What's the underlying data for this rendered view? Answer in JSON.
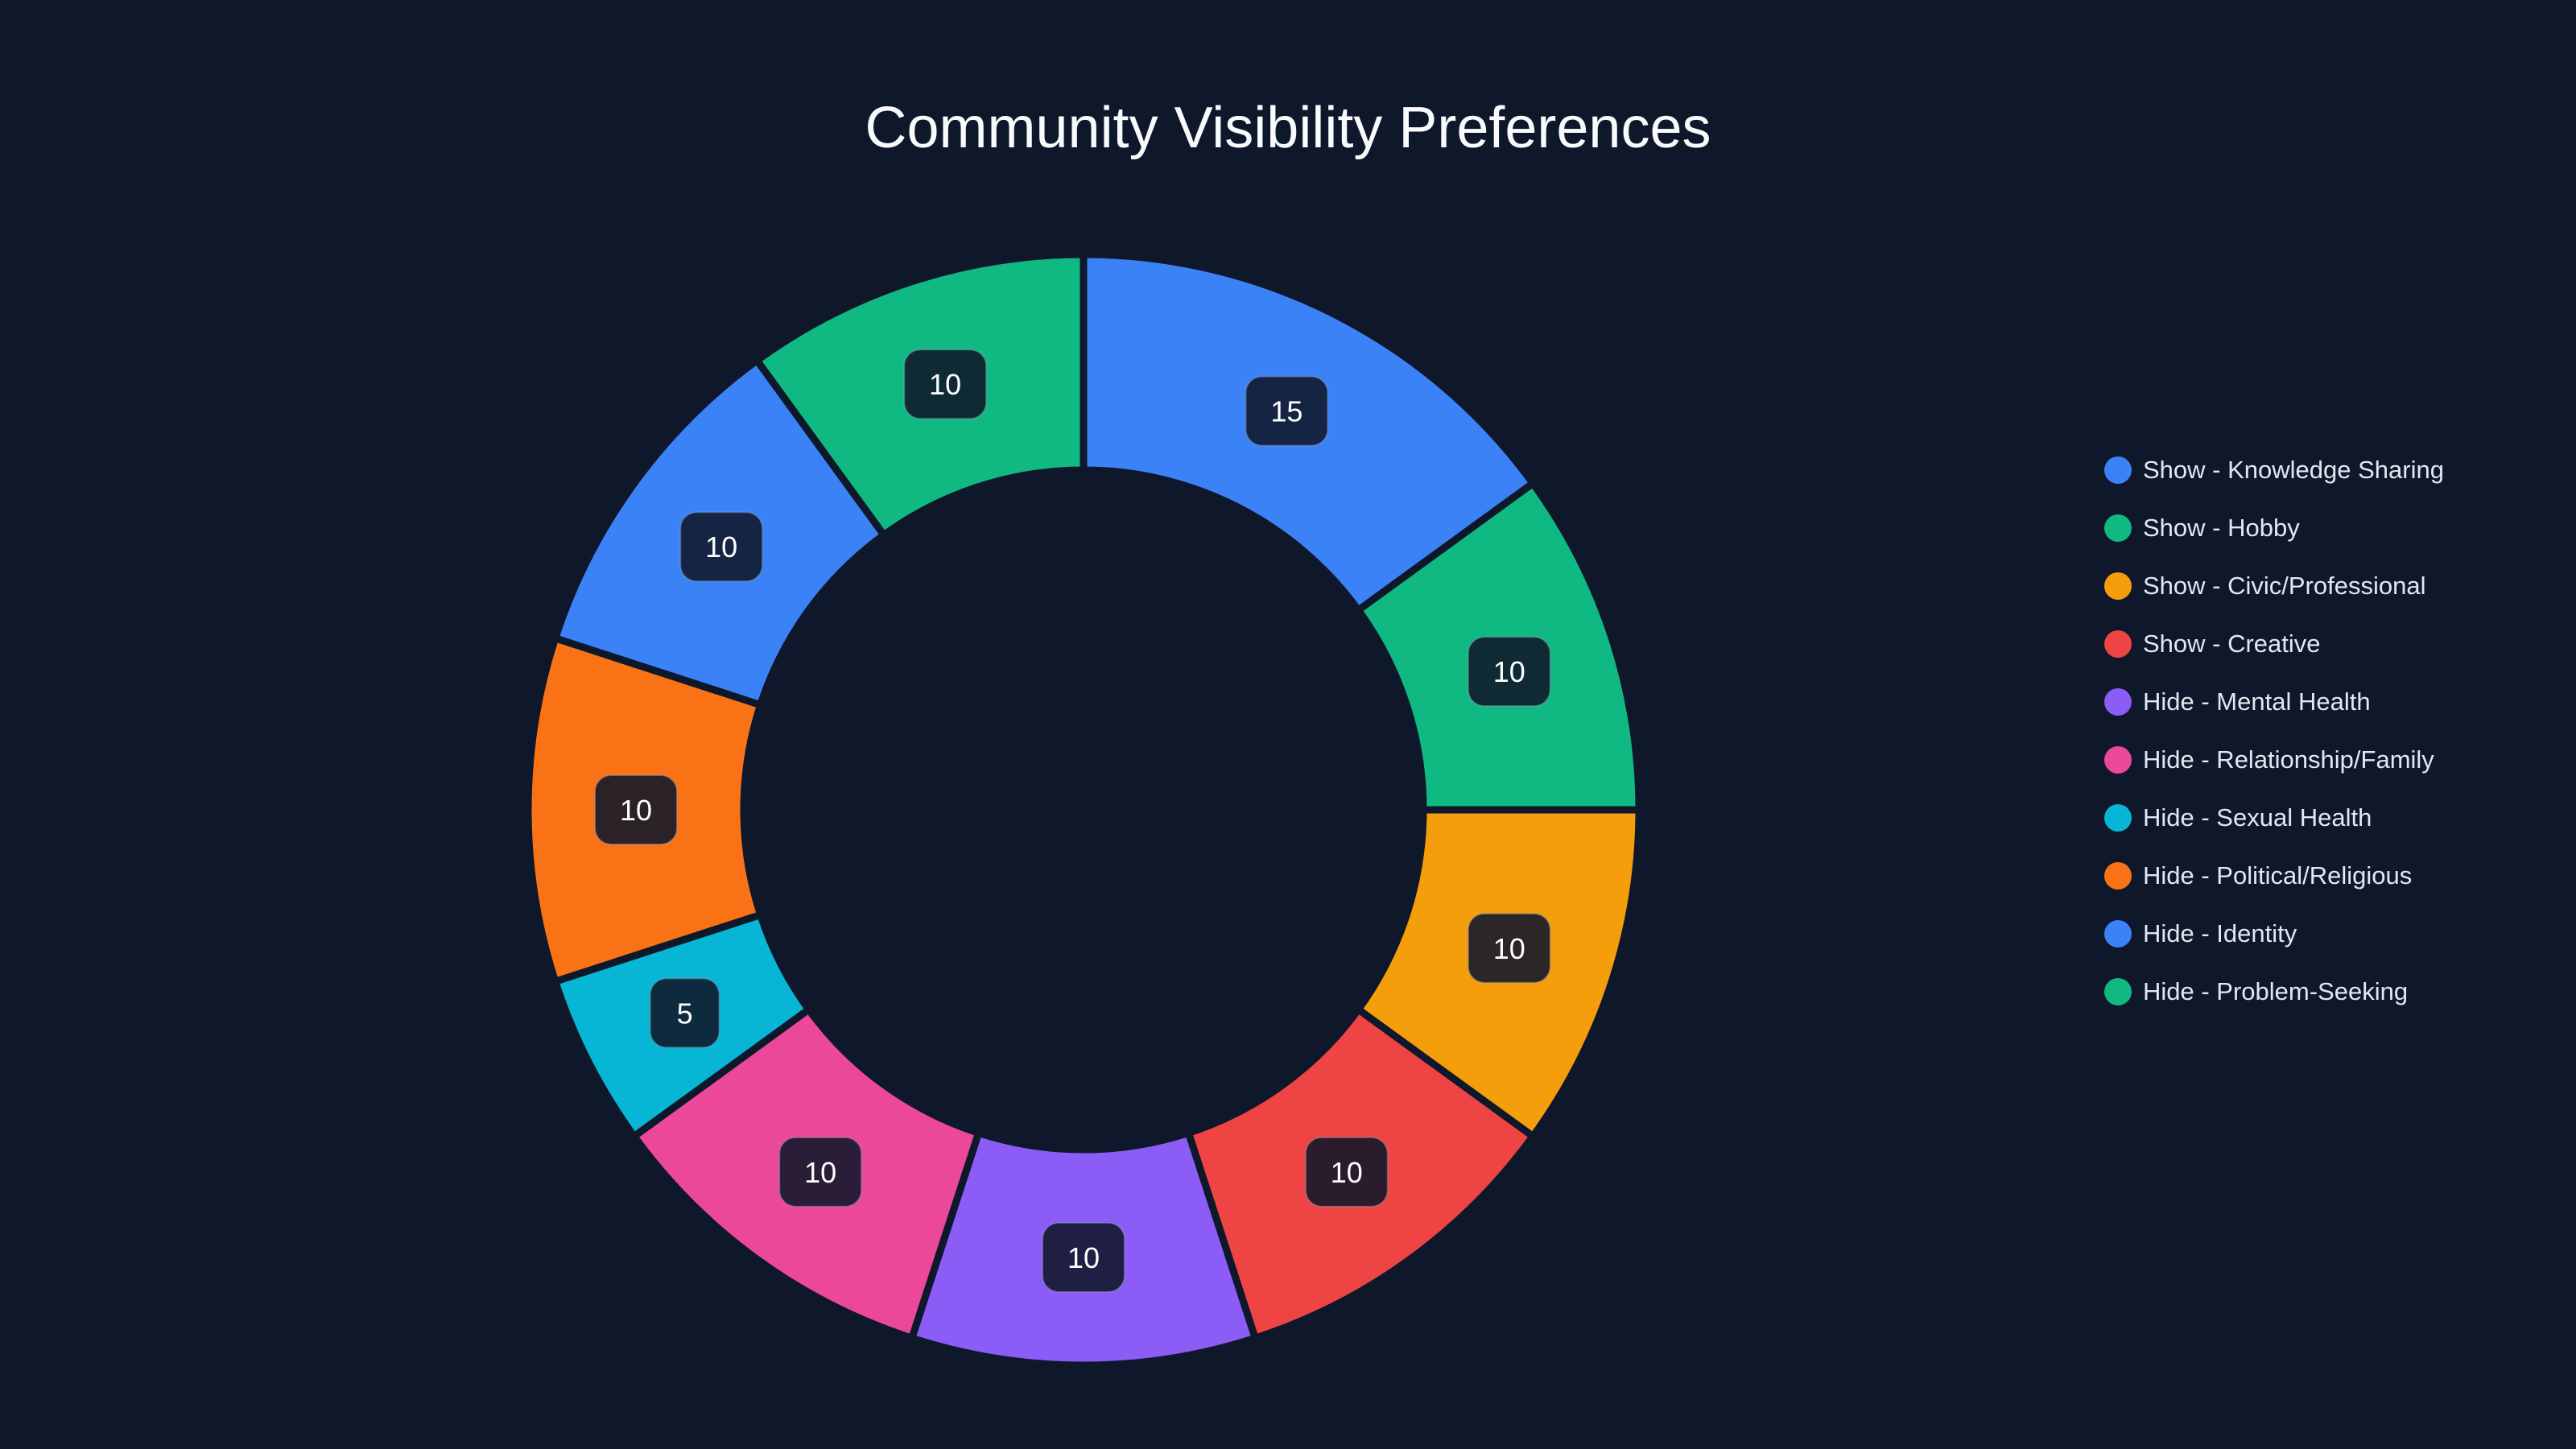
{
  "title": "Community Visibility Preferences",
  "chart_data": {
    "type": "pie",
    "subtype": "donut",
    "title": "Community Visibility Preferences",
    "start_angle": "12 o'clock, clockwise",
    "categories": [
      "Show - Knowledge Sharing",
      "Show - Hobby",
      "Show - Civic/Professional",
      "Show - Creative",
      "Hide - Mental Health",
      "Hide - Relationship/Family",
      "Hide - Sexual Health",
      "Hide - Political/Religious",
      "Hide - Identity",
      "Hide - Problem-Seeking"
    ],
    "values": [
      15,
      10,
      10,
      10,
      10,
      10,
      5,
      10,
      10,
      10
    ],
    "colors": [
      "#3b82f6",
      "#10b981",
      "#f59e0b",
      "#ef4444",
      "#8b5cf6",
      "#ec4899",
      "#06b6d4",
      "#f97316",
      "#3b82f6",
      "#10b981"
    ],
    "data_labels": [
      "15",
      "10",
      "10",
      "10",
      "10",
      "10",
      "5",
      "10",
      "10",
      "10"
    ],
    "legend_position": "right"
  },
  "legend": {
    "items": [
      {
        "label": "Show - Knowledge Sharing",
        "color": "#3b82f6"
      },
      {
        "label": "Show - Hobby",
        "color": "#10b981"
      },
      {
        "label": "Show - Civic/Professional",
        "color": "#f59e0b"
      },
      {
        "label": "Show - Creative",
        "color": "#ef4444"
      },
      {
        "label": "Hide - Mental Health",
        "color": "#8b5cf6"
      },
      {
        "label": "Hide - Relationship/Family",
        "color": "#ec4899"
      },
      {
        "label": "Hide - Sexual Health",
        "color": "#06b6d4"
      },
      {
        "label": "Hide - Political/Religious",
        "color": "#f97316"
      },
      {
        "label": "Hide - Identity",
        "color": "#3b82f6"
      },
      {
        "label": "Hide - Problem-Seeking",
        "color": "#10b981"
      }
    ]
  },
  "theme": {
    "background": "#0f172a",
    "title_color": "#f8fafc",
    "legend_text_color": "#e2e8f0",
    "label_text_color": "#ffffff"
  }
}
